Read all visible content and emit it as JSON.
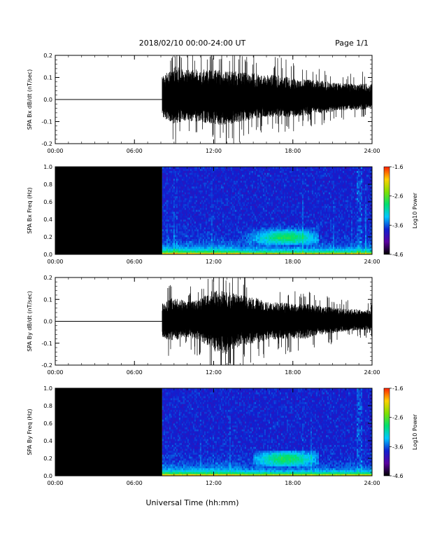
{
  "header": {
    "title": "2018/02/10  00:00-24:00 UT",
    "page": "Page 1/1"
  },
  "xlabel": "Universal Time (hh:mm)",
  "colors": {
    "trace": "#000000",
    "background": "#ffffff",
    "no_data": "#000000"
  },
  "colorbar": {
    "label": "Log10 Power",
    "ticks": [
      "-1.6",
      "-2.6",
      "-3.6",
      "-4.6"
    ],
    "range": [
      -4.6,
      -1.6
    ],
    "stops": [
      "#000000",
      "#5a00a0",
      "#1020d0",
      "#00c8ff",
      "#00e070",
      "#80e000",
      "#ffd000",
      "#ff2000"
    ]
  },
  "chart_data": [
    {
      "type": "line",
      "name": "bx-trace",
      "ylabel": "SPA Bx dB/dt (nT/sec)",
      "xlim": [
        0,
        24
      ],
      "ylim": [
        -0.2,
        0.2
      ],
      "x_ticks": [
        "00:00",
        "06:00",
        "12:00",
        "18:00",
        "24:00"
      ],
      "y_ticks": [
        "0.2",
        "0.1",
        "0.0",
        "-0.1",
        "-0.2"
      ],
      "data_start_hour": 8.1,
      "envelope": {
        "x": [
          0,
          8.0,
          8.1,
          9,
          10,
          11,
          12,
          13,
          14,
          15,
          16,
          17,
          18,
          19,
          20,
          21,
          22,
          23,
          24
        ],
        "upper": [
          0,
          0,
          0.13,
          0.19,
          0.17,
          0.17,
          0.17,
          0.16,
          0.16,
          0.15,
          0.14,
          0.14,
          0.12,
          0.12,
          0.11,
          0.1,
          0.09,
          0.09,
          0.09
        ],
        "lower": [
          0,
          0,
          -0.1,
          -0.14,
          -0.12,
          -0.13,
          -0.14,
          -0.15,
          -0.13,
          -0.11,
          -0.1,
          -0.1,
          -0.1,
          -0.09,
          -0.08,
          -0.07,
          -0.06,
          -0.06,
          -0.05
        ]
      }
    },
    {
      "type": "heatmap",
      "name": "bx-spectrogram",
      "ylabel": "SPA Bx Freq (Hz)",
      "xlim": [
        0,
        24
      ],
      "ylim": [
        0,
        1.0
      ],
      "x_ticks": [
        "00:00",
        "06:00",
        "12:00",
        "18:00",
        "24:00"
      ],
      "y_ticks": [
        "1.0",
        "0.8",
        "0.6",
        "0.4",
        "0.2",
        "0.0"
      ],
      "data_start_hour": 8.1,
      "feature": {
        "x": [
          14,
          20
        ],
        "freq_range": [
          0.1,
          0.35
        ],
        "peak_hour": 17.5
      }
    },
    {
      "type": "line",
      "name": "by-trace",
      "ylabel": "SPA By dB/dt (nT/sec)",
      "xlim": [
        0,
        24
      ],
      "ylim": [
        -0.2,
        0.2
      ],
      "x_ticks": [
        "00:00",
        "06:00",
        "12:00",
        "18:00",
        "24:00"
      ],
      "y_ticks": [
        "0.2",
        "0.1",
        "0.0",
        "-0.1",
        "-0.2"
      ],
      "data_start_hour": 8.1,
      "envelope": {
        "x": [
          0,
          8.0,
          8.1,
          9,
          10,
          11,
          12,
          13,
          14,
          15,
          16,
          17,
          18,
          19,
          20,
          21,
          22,
          23,
          24
        ],
        "upper": [
          0,
          0,
          0.1,
          0.14,
          0.11,
          0.13,
          0.18,
          0.17,
          0.15,
          0.14,
          0.11,
          0.11,
          0.1,
          0.1,
          0.09,
          0.08,
          0.07,
          0.07,
          0.07
        ],
        "lower": [
          0,
          0,
          -0.1,
          -0.11,
          -0.09,
          -0.11,
          -0.17,
          -0.19,
          -0.14,
          -0.13,
          -0.11,
          -0.1,
          -0.1,
          -0.1,
          -0.08,
          -0.07,
          -0.06,
          -0.05,
          -0.05
        ]
      }
    },
    {
      "type": "heatmap",
      "name": "by-spectrogram",
      "ylabel": "SPA By Freq (Hz)",
      "xlim": [
        0,
        24
      ],
      "ylim": [
        0,
        1.0
      ],
      "x_ticks": [
        "00:00",
        "06:00",
        "12:00",
        "18:00",
        "24:00"
      ],
      "y_ticks": [
        "1.0",
        "0.8",
        "0.6",
        "0.4",
        "0.2",
        "0.0"
      ],
      "data_start_hour": 8.1,
      "feature": {
        "x": [
          15,
          20
        ],
        "freq_range": [
          0.1,
          0.3
        ],
        "peak_hour": 17.5
      }
    }
  ]
}
